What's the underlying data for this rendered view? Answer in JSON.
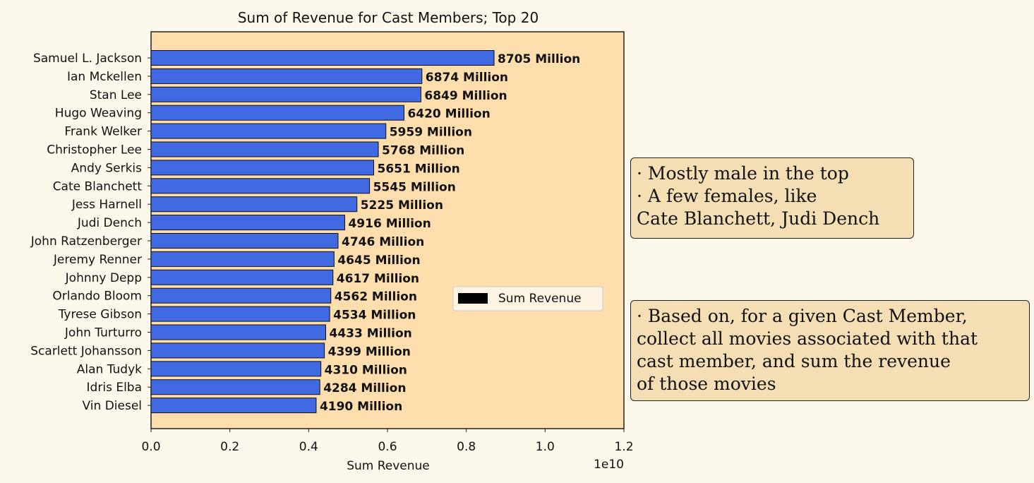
{
  "chart_data": {
    "type": "bar",
    "orientation": "horizontal",
    "title": "Sum of Revenue for Cast Members; Top 20",
    "xlabel": "Sum Revenue",
    "ylabel": "",
    "x_offset_label": "1e10",
    "xlim": [
      0,
      1.2
    ],
    "xticks": [
      "0.0",
      "0.2",
      "0.4",
      "0.6",
      "0.8",
      "1.0",
      "1.2"
    ],
    "grid": false,
    "legend": {
      "position": "center-right",
      "entries": [
        "Sum Revenue"
      ]
    },
    "bar_color": "#4169e1",
    "plot_background": "#ffdead",
    "categories": [
      "Samuel L. Jackson",
      "Ian Mckellen",
      "Stan Lee",
      "Hugo Weaving",
      "Frank Welker",
      "Christopher Lee",
      "Andy Serkis",
      "Cate Blanchett",
      "Jess Harnell",
      "Judi Dench",
      "John Ratzenberger",
      "Jeremy Renner",
      "Johnny Depp",
      "Orlando Bloom",
      "Tyrese Gibson",
      "John Turturro",
      "Scarlett Johansson",
      "Alan Tudyk",
      "Idris Elba",
      "Vin Diesel"
    ],
    "series": [
      {
        "name": "Sum Revenue",
        "values": [
          0.8705,
          0.6874,
          0.6849,
          0.642,
          0.5959,
          0.5768,
          0.5651,
          0.5545,
          0.5225,
          0.4916,
          0.4746,
          0.4645,
          0.4617,
          0.4562,
          0.4534,
          0.4433,
          0.4399,
          0.431,
          0.4284,
          0.419
        ]
      }
    ],
    "data_labels": [
      "8705 Million",
      "6874 Million",
      "6849 Million",
      "6420 Million",
      "5959 Million",
      "5768 Million",
      "5651 Million",
      "5545 Million",
      "5225 Million",
      "4916 Million",
      "4746 Million",
      "4645 Million",
      "4617 Million",
      "4562 Million",
      "4534 Million",
      "4433 Million",
      "4399 Million",
      "4310 Million",
      "4284 Million",
      "4190 Million"
    ]
  },
  "annotations": {
    "note1": [
      "· Mostly male in the top",
      "· A few females, like",
      "Cate Blanchett, Judi Dench"
    ],
    "note2": [
      "· Based on, for a given Cast Member,",
      "collect all movies associated with that",
      "cast member, and sum the revenue",
      "of those movies"
    ]
  }
}
